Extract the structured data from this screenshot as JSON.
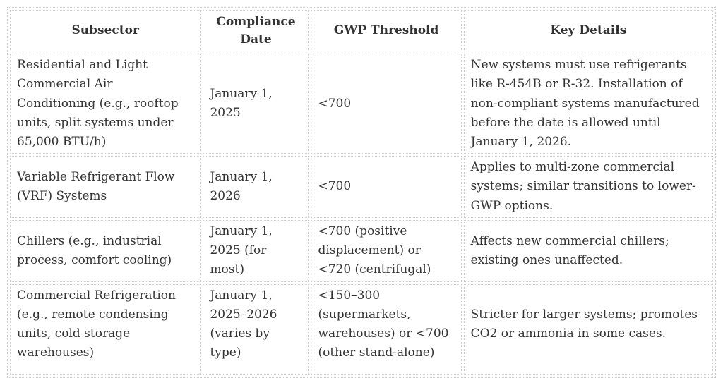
{
  "theme": {
    "colors": {
      "text": "#333333",
      "border": "#cccccc",
      "background": "#ffffff"
    }
  },
  "table": {
    "headers": [
      "Subsector",
      "Compliance Date",
      "GWP Threshold",
      "Key Details"
    ],
    "rows": [
      {
        "subsector": "Residential and Light Commercial Air Conditioning (e.g., rooftop units, split systems under 65,000 BTU/h)",
        "compliance_date": "January 1, 2025",
        "gwp_threshold": "<700",
        "key_details": "New systems must use refrigerants like R-454B or R-32. Installation of non-compliant systems manufactured before the date is allowed until January 1, 2026."
      },
      {
        "subsector": "Variable Refrigerant Flow (VRF) Systems",
        "compliance_date": "January 1, 2026",
        "gwp_threshold": "<700",
        "key_details": "Applies to multi-zone commercial systems; similar transitions to lower-GWP options."
      },
      {
        "subsector": "Chillers (e.g., industrial process, comfort cooling)",
        "compliance_date": "January 1, 2025 (for most)",
        "gwp_threshold": "<700 (positive displacement) or <720 (centrifugal)",
        "key_details": "Affects new commercial chillers; existing ones unaffected."
      },
      {
        "subsector": "Commercial Refrigeration (e.g., remote condensing units, cold storage warehouses)",
        "compliance_date": "January 1, 2025–2026 (varies by type)",
        "gwp_threshold": "<150–300 (supermarkets, warehouses) or <700 (other stand-alone)",
        "key_details": "Stricter for larger systems; promotes CO2 or ammonia in some cases."
      }
    ]
  }
}
